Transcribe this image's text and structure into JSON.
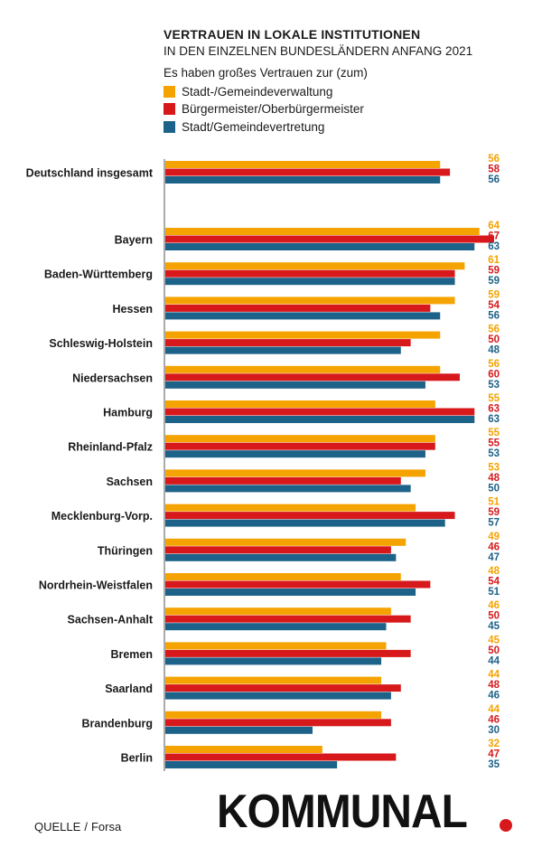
{
  "header": {
    "title": "VERTRAUEN IN LOKALE INSTITUTIONEN",
    "subtitle": "IN DEN EINZELNEN BUNDESLÄNDERN ANFANG 2021",
    "legend_title": "Es haben großes Vertrauen zur (zum)"
  },
  "legend": [
    {
      "label": "Stadt-/Gemeindeverwaltung",
      "color": "#f5a300"
    },
    {
      "label": "Bürgermeister/Oberbürgermeister",
      "color": "#d7191c"
    },
    {
      "label": "Stadt/Gemeindevertretung",
      "color": "#1d6288"
    }
  ],
  "chart_data": {
    "type": "bar",
    "orientation": "horizontal",
    "title": "VERTRAUEN IN LOKALE INSTITUTIONEN",
    "subtitle": "IN DEN EINZELNEN BUNDESLÄNDERN ANFANG 2021",
    "categories": [
      "Deutschland insgesamt",
      "Bayern",
      "Baden-Württemberg",
      "Hessen",
      "Schleswig-Holstein",
      "Niedersachsen",
      "Hamburg",
      "Rheinland-Pfalz",
      "Sachsen",
      "Mecklenburg-Vorp.",
      "Thüringen",
      "Nordrhein-Weistfalen",
      "Sachsen-Anhalt",
      "Bremen",
      "Saarland",
      "Brandenburg",
      "Berlin"
    ],
    "series": [
      {
        "name": "Stadt-/Gemeindeverwaltung",
        "color": "#f5a300",
        "values": [
          56,
          64,
          61,
          59,
          56,
          56,
          55,
          55,
          53,
          51,
          49,
          48,
          46,
          45,
          44,
          44,
          32
        ]
      },
      {
        "name": "Bürgermeister/Oberbürgermeister",
        "color": "#d7191c",
        "values": [
          58,
          67,
          59,
          54,
          50,
          60,
          63,
          55,
          48,
          59,
          46,
          54,
          50,
          50,
          48,
          46,
          47
        ]
      },
      {
        "name": "Stadt/Gemeindevertretung",
        "color": "#1d6288",
        "values": [
          56,
          63,
          59,
          56,
          48,
          53,
          63,
          53,
          50,
          57,
          47,
          51,
          45,
          44,
          46,
          30,
          35
        ]
      }
    ],
    "xlim": [
      0,
      67
    ],
    "grid": false,
    "legend_position": "top-left",
    "data_labels": true
  },
  "footer": {
    "source_label": "QUELLE",
    "source_separator": "/",
    "source_name": "Forsa",
    "logo_text": "KOMMUNAL"
  }
}
